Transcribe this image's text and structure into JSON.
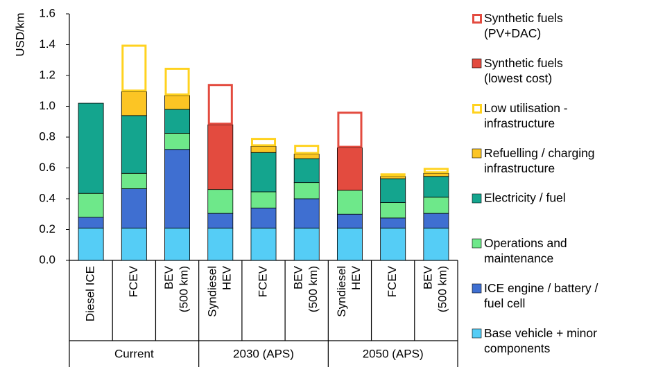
{
  "chart_data": {
    "type": "stacked_bar",
    "y_axis_label": "USD/km",
    "categories": [
      "Diesel ICE",
      "FCEV",
      "BEV\n(500 km)",
      "Syndiesel\nHEV",
      "FCEV",
      "BEV\n(500 km)",
      "Syndiesel\nHEV",
      "FCEV",
      "BEV\n(500 km)"
    ],
    "groups": [
      "Current",
      "2030 (APS)",
      "2050 (APS)"
    ],
    "ylim": [
      0,
      1.6
    ],
    "yticks": [
      {
        "value": 0,
        "label": "0.0"
      },
      0.2,
      0.4,
      0.6,
      0.8,
      {
        "value": 1,
        "label": "1.0"
      },
      1.2,
      1.4,
      1.6
    ],
    "series": [
      {
        "name": "Base vehicle + minor\ncomponents",
        "color": "#55cdf6",
        "style": "filled",
        "values": [
          0.21,
          0.21,
          0.21,
          0.21,
          0.21,
          0.21,
          0.21,
          0.21,
          0.21
        ]
      },
      {
        "name": "ICE engine / battery /\nfuel cell",
        "color": "#3f6fd1",
        "style": "filled",
        "values": [
          0.07,
          0.255,
          0.51,
          0.095,
          0.13,
          0.19,
          0.09,
          0.065,
          0.095
        ]
      },
      {
        "name": "Operations and\nmaintenance",
        "color": "#6ee88a",
        "style": "filled",
        "values": [
          0.155,
          0.1,
          0.105,
          0.155,
          0.105,
          0.105,
          0.155,
          0.1,
          0.105
        ]
      },
      {
        "name": "Electricity / fuel",
        "color": "#14a58e",
        "style": "filled",
        "values": [
          0.585,
          0.375,
          0.155,
          null,
          0.255,
          0.155,
          null,
          0.155,
          0.135
        ]
      },
      {
        "name": "Refuelling / charging\ninfrastructure",
        "color": "#fcc524",
        "style": "filled",
        "values": [
          null,
          0.155,
          0.09,
          null,
          0.04,
          0.03,
          null,
          0.015,
          0.02
        ]
      },
      {
        "name": "Low utilisation -\ninfrastructure",
        "color": "#ffd21f",
        "style": "outline",
        "values": [
          null,
          0.305,
          0.18,
          null,
          0.055,
          0.06,
          null,
          0.02,
          0.035
        ]
      },
      {
        "name": "Synthetic fuels\n(lowest cost)",
        "color": "#e34b3f",
        "style": "filled",
        "values": [
          null,
          null,
          null,
          0.42,
          null,
          null,
          0.275,
          null,
          null
        ]
      },
      {
        "name": "Synthetic fuels\n(PV+DAC)",
        "color": "#e34b3f",
        "style": "outline",
        "values": [
          null,
          null,
          null,
          0.265,
          null,
          null,
          0.235,
          null,
          null
        ]
      }
    ]
  }
}
